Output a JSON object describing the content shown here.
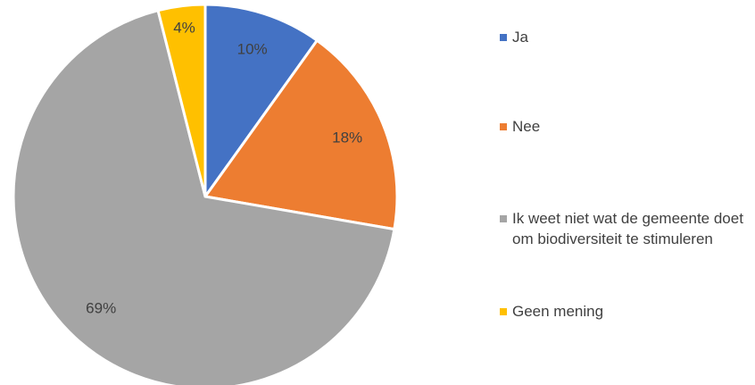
{
  "chart_data": {
    "type": "pie",
    "categories": [
      "Ja",
      "Nee",
      "Ik weet niet wat de gemeente doet om biodiversiteit te stimuleren",
      "Geen mening"
    ],
    "values": [
      10,
      18,
      69,
      4
    ],
    "value_labels": [
      "10%",
      "18%",
      "69%",
      "4%"
    ],
    "colors": [
      "#4472c4",
      "#ed7d31",
      "#a5a5a5",
      "#ffc000"
    ],
    "legend": "right"
  }
}
